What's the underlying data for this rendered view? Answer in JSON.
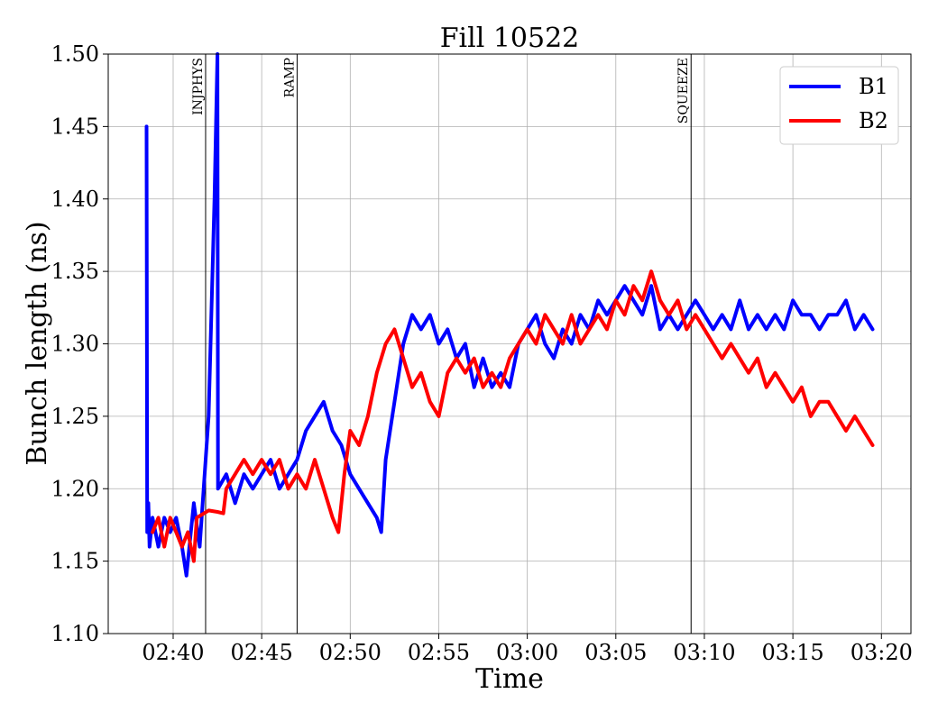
{
  "chart_data": {
    "type": "line",
    "title": "Fill 10522",
    "xlabel": "Time",
    "ylabel": "Bunch length (ns)",
    "xlim": [
      "02:36:20",
      "03:21:40"
    ],
    "ylim": [
      1.1,
      1.5
    ],
    "grid": true,
    "legend_position": "top-right",
    "x_tick_labels": [
      "02:40",
      "02:45",
      "02:50",
      "02:55",
      "03:00",
      "03:05",
      "03:10",
      "03:15",
      "03:20"
    ],
    "y_tick_labels": [
      "1.10",
      "1.15",
      "1.20",
      "1.25",
      "1.30",
      "1.35",
      "1.40",
      "1.45",
      "1.50"
    ],
    "annotations": [
      {
        "label": "INJPHYS",
        "x": "02:41:50"
      },
      {
        "label": "RAMP",
        "x": "02:47:00"
      },
      {
        "label": "SQUEEZE",
        "x": "03:09:15"
      }
    ],
    "series": [
      {
        "name": "B1",
        "color": "#0000ff",
        "points": [
          [
            "02:38:30",
            1.45
          ],
          [
            "02:38:32",
            1.17
          ],
          [
            "02:38:36",
            1.19
          ],
          [
            "02:38:40",
            1.16
          ],
          [
            "02:38:50",
            1.18
          ],
          [
            "02:39:10",
            1.16
          ],
          [
            "02:39:30",
            1.18
          ],
          [
            "02:39:50",
            1.17
          ],
          [
            "02:40:10",
            1.18
          ],
          [
            "02:40:30",
            1.16
          ],
          [
            "02:40:45",
            1.14
          ],
          [
            "02:41:00",
            1.17
          ],
          [
            "02:41:10",
            1.19
          ],
          [
            "02:41:30",
            1.16
          ],
          [
            "02:42:00",
            1.25
          ],
          [
            "02:42:20",
            1.4
          ],
          [
            "02:42:30",
            1.5
          ],
          [
            "02:42:32",
            1.2
          ],
          [
            "02:43:00",
            1.21
          ],
          [
            "02:43:30",
            1.19
          ],
          [
            "02:44:00",
            1.21
          ],
          [
            "02:44:30",
            1.2
          ],
          [
            "02:45:00",
            1.21
          ],
          [
            "02:45:30",
            1.22
          ],
          [
            "02:46:00",
            1.2
          ],
          [
            "02:46:30",
            1.21
          ],
          [
            "02:47:00",
            1.22
          ],
          [
            "02:47:30",
            1.24
          ],
          [
            "02:48:00",
            1.25
          ],
          [
            "02:48:30",
            1.26
          ],
          [
            "02:49:00",
            1.24
          ],
          [
            "02:49:30",
            1.23
          ],
          [
            "02:50:00",
            1.21
          ],
          [
            "02:50:30",
            1.2
          ],
          [
            "02:51:00",
            1.19
          ],
          [
            "02:51:30",
            1.18
          ],
          [
            "02:51:45",
            1.17
          ],
          [
            "02:52:00",
            1.22
          ],
          [
            "02:52:30",
            1.26
          ],
          [
            "02:53:00",
            1.3
          ],
          [
            "02:53:30",
            1.32
          ],
          [
            "02:54:00",
            1.31
          ],
          [
            "02:54:30",
            1.32
          ],
          [
            "02:55:00",
            1.3
          ],
          [
            "02:55:30",
            1.31
          ],
          [
            "02:56:00",
            1.29
          ],
          [
            "02:56:30",
            1.3
          ],
          [
            "02:57:00",
            1.27
          ],
          [
            "02:57:30",
            1.29
          ],
          [
            "02:58:00",
            1.27
          ],
          [
            "02:58:30",
            1.28
          ],
          [
            "02:59:00",
            1.27
          ],
          [
            "02:59:30",
            1.3
          ],
          [
            "03:00:00",
            1.31
          ],
          [
            "03:00:30",
            1.32
          ],
          [
            "03:01:00",
            1.3
          ],
          [
            "03:01:30",
            1.29
          ],
          [
            "03:02:00",
            1.31
          ],
          [
            "03:02:30",
            1.3
          ],
          [
            "03:03:00",
            1.32
          ],
          [
            "03:03:30",
            1.31
          ],
          [
            "03:04:00",
            1.33
          ],
          [
            "03:04:30",
            1.32
          ],
          [
            "03:05:00",
            1.33
          ],
          [
            "03:05:30",
            1.34
          ],
          [
            "03:06:00",
            1.33
          ],
          [
            "03:06:30",
            1.32
          ],
          [
            "03:07:00",
            1.34
          ],
          [
            "03:07:30",
            1.31
          ],
          [
            "03:08:00",
            1.32
          ],
          [
            "03:08:30",
            1.31
          ],
          [
            "03:09:00",
            1.32
          ],
          [
            "03:09:30",
            1.33
          ],
          [
            "03:10:00",
            1.32
          ],
          [
            "03:10:30",
            1.31
          ],
          [
            "03:11:00",
            1.32
          ],
          [
            "03:11:30",
            1.31
          ],
          [
            "03:12:00",
            1.33
          ],
          [
            "03:12:30",
            1.31
          ],
          [
            "03:13:00",
            1.32
          ],
          [
            "03:13:30",
            1.31
          ],
          [
            "03:14:00",
            1.32
          ],
          [
            "03:14:30",
            1.31
          ],
          [
            "03:15:00",
            1.33
          ],
          [
            "03:15:30",
            1.32
          ],
          [
            "03:16:00",
            1.32
          ],
          [
            "03:16:30",
            1.31
          ],
          [
            "03:17:00",
            1.32
          ],
          [
            "03:17:30",
            1.32
          ],
          [
            "03:18:00",
            1.33
          ],
          [
            "03:18:30",
            1.31
          ],
          [
            "03:19:00",
            1.32
          ],
          [
            "03:19:30",
            1.31
          ]
        ]
      },
      {
        "name": "B2",
        "color": "#ff0000",
        "points": [
          [
            "02:38:50",
            1.17
          ],
          [
            "02:39:10",
            1.18
          ],
          [
            "02:39:30",
            1.16
          ],
          [
            "02:39:50",
            1.18
          ],
          [
            "02:40:10",
            1.17
          ],
          [
            "02:40:30",
            1.16
          ],
          [
            "02:40:50",
            1.17
          ],
          [
            "02:41:10",
            1.15
          ],
          [
            "02:41:20",
            1.18
          ],
          [
            "02:42:00",
            1.185
          ],
          [
            "02:42:30",
            1.184
          ],
          [
            "02:42:50",
            1.183
          ],
          [
            "02:43:00",
            1.2
          ],
          [
            "02:43:30",
            1.21
          ],
          [
            "02:44:00",
            1.22
          ],
          [
            "02:44:30",
            1.21
          ],
          [
            "02:45:00",
            1.22
          ],
          [
            "02:45:30",
            1.21
          ],
          [
            "02:46:00",
            1.22
          ],
          [
            "02:46:30",
            1.2
          ],
          [
            "02:47:00",
            1.21
          ],
          [
            "02:47:30",
            1.2
          ],
          [
            "02:48:00",
            1.22
          ],
          [
            "02:48:30",
            1.2
          ],
          [
            "02:49:00",
            1.18
          ],
          [
            "02:49:20",
            1.17
          ],
          [
            "02:49:40",
            1.21
          ],
          [
            "02:50:00",
            1.24
          ],
          [
            "02:50:30",
            1.23
          ],
          [
            "02:51:00",
            1.25
          ],
          [
            "02:51:30",
            1.28
          ],
          [
            "02:52:00",
            1.3
          ],
          [
            "02:52:30",
            1.31
          ],
          [
            "02:53:00",
            1.29
          ],
          [
            "02:53:30",
            1.27
          ],
          [
            "02:54:00",
            1.28
          ],
          [
            "02:54:30",
            1.26
          ],
          [
            "02:55:00",
            1.25
          ],
          [
            "02:55:30",
            1.28
          ],
          [
            "02:56:00",
            1.29
          ],
          [
            "02:56:30",
            1.28
          ],
          [
            "02:57:00",
            1.29
          ],
          [
            "02:57:30",
            1.27
          ],
          [
            "02:58:00",
            1.28
          ],
          [
            "02:58:30",
            1.27
          ],
          [
            "02:59:00",
            1.29
          ],
          [
            "02:59:30",
            1.3
          ],
          [
            "03:00:00",
            1.31
          ],
          [
            "03:00:30",
            1.3
          ],
          [
            "03:01:00",
            1.32
          ],
          [
            "03:01:30",
            1.31
          ],
          [
            "03:02:00",
            1.3
          ],
          [
            "03:02:30",
            1.32
          ],
          [
            "03:03:00",
            1.3
          ],
          [
            "03:03:30",
            1.31
          ],
          [
            "03:04:00",
            1.32
          ],
          [
            "03:04:30",
            1.31
          ],
          [
            "03:05:00",
            1.33
          ],
          [
            "03:05:30",
            1.32
          ],
          [
            "03:06:00",
            1.34
          ],
          [
            "03:06:30",
            1.33
          ],
          [
            "03:07:00",
            1.35
          ],
          [
            "03:07:30",
            1.33
          ],
          [
            "03:08:00",
            1.32
          ],
          [
            "03:08:30",
            1.33
          ],
          [
            "03:09:00",
            1.31
          ],
          [
            "03:09:30",
            1.32
          ],
          [
            "03:10:00",
            1.31
          ],
          [
            "03:10:30",
            1.3
          ],
          [
            "03:11:00",
            1.29
          ],
          [
            "03:11:30",
            1.3
          ],
          [
            "03:12:00",
            1.29
          ],
          [
            "03:12:30",
            1.28
          ],
          [
            "03:13:00",
            1.29
          ],
          [
            "03:13:30",
            1.27
          ],
          [
            "03:14:00",
            1.28
          ],
          [
            "03:14:30",
            1.27
          ],
          [
            "03:15:00",
            1.26
          ],
          [
            "03:15:30",
            1.27
          ],
          [
            "03:16:00",
            1.25
          ],
          [
            "03:16:30",
            1.26
          ],
          [
            "03:17:00",
            1.26
          ],
          [
            "03:17:30",
            1.25
          ],
          [
            "03:18:00",
            1.24
          ],
          [
            "03:18:30",
            1.25
          ],
          [
            "03:19:00",
            1.24
          ],
          [
            "03:19:30",
            1.23
          ]
        ]
      }
    ]
  }
}
